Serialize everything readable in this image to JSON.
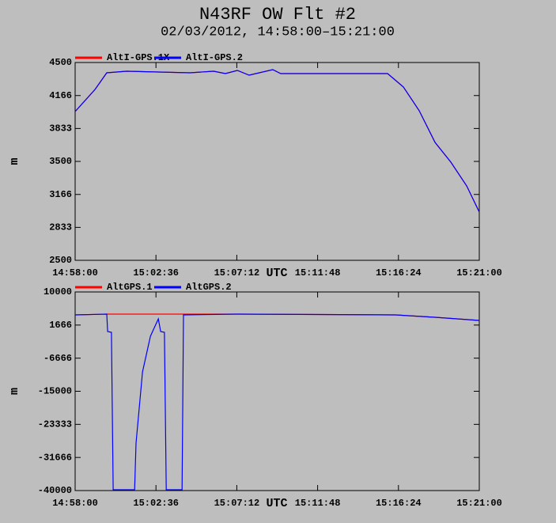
{
  "chart_data": [
    {
      "type": "line",
      "title": "N43RF OW Flt #2",
      "subtitle": "02/03/2012, 14:58:00–15:21:00",
      "xlabel": "UTC",
      "ylabel": "m",
      "xlim": [
        "14:58:00",
        "15:21:00"
      ],
      "xticks": [
        "14:58:00",
        "15:02:36",
        "15:07:12",
        "15:11:48",
        "15:16:24",
        "15:21:00"
      ],
      "ylim": [
        2500,
        4500
      ],
      "yticks": [
        4500,
        4166,
        3833,
        3500,
        3166,
        2833,
        2500
      ],
      "series": [
        {
          "name": "AltI-GPS.1X",
          "color": "#ff0000",
          "x": [
            "14:58:00",
            "14:59:08",
            "14:59:48",
            "15:00:56",
            "15:02:44",
            "15:04:32",
            "15:05:53",
            "15:06:33",
            "15:07:14",
            "15:07:54",
            "15:09:15",
            "15:09:42",
            "15:15:47",
            "15:16:41",
            "15:17:35",
            "15:18:29",
            "15:19:23",
            "15:20:17",
            "15:21:00"
          ],
          "values": [
            4004,
            4228,
            4396,
            4412,
            4404,
            4396,
            4412,
            4388,
            4420,
            4372,
            4428,
            4388,
            4388,
            4252,
            4012,
            3692,
            3492,
            3252,
            2988
          ]
        },
        {
          "name": "AltI-GPS.2",
          "color": "#0000ff",
          "x": [
            "14:58:00",
            "14:59:08",
            "14:59:48",
            "15:00:56",
            "15:02:44",
            "15:04:32",
            "15:05:53",
            "15:06:33",
            "15:07:14",
            "15:07:54",
            "15:09:15",
            "15:09:42",
            "15:15:47",
            "15:16:41",
            "15:17:35",
            "15:18:29",
            "15:19:23",
            "15:20:17",
            "15:21:00"
          ],
          "values": [
            4004,
            4228,
            4396,
            4412,
            4404,
            4396,
            4412,
            4388,
            4420,
            4372,
            4428,
            4388,
            4388,
            4252,
            4012,
            3692,
            3492,
            3252,
            2988
          ]
        }
      ]
    },
    {
      "type": "line",
      "xlabel": "UTC",
      "ylabel": "m",
      "xlim": [
        "14:58:00",
        "15:21:00"
      ],
      "xticks": [
        "14:58:00",
        "15:02:36",
        "15:07:12",
        "15:11:48",
        "15:16:24",
        "15:21:00"
      ],
      "ylim": [
        -40000,
        10000
      ],
      "yticks": [
        10000,
        1666,
        -6666,
        -15000,
        -23333,
        -31666,
        -40000
      ],
      "series": [
        {
          "name": "AltGPS.1",
          "color": "#ff0000",
          "x": [
            "14:58:00",
            "14:59:48",
            "15:04:10",
            "15:07:14",
            "15:16:14",
            "15:18:29",
            "15:21:00"
          ],
          "values": [
            4223,
            4422,
            4422,
            4422,
            4223,
            3626,
            2829
          ]
        },
        {
          "name": "AltGPS.2",
          "color": "#0000ff",
          "x": [
            "14:58:00",
            "14:59:48",
            "14:59:51",
            "15:00:04",
            "15:00:10",
            "15:01:23",
            "15:01:28",
            "15:01:50",
            "15:02:17",
            "15:02:44",
            "15:02:52",
            "15:03:05",
            "15:03:11",
            "15:04:05",
            "15:04:10",
            "15:07:14",
            "15:16:14",
            "15:18:29",
            "15:21:00"
          ],
          "values": [
            4223,
            4422,
            40,
            -159,
            -39800,
            -39800,
            -28047,
            -10119,
            -1155,
            3227,
            40,
            -159,
            -39800,
            -39800,
            4223,
            4422,
            4223,
            3626,
            2829
          ]
        }
      ]
    }
  ]
}
